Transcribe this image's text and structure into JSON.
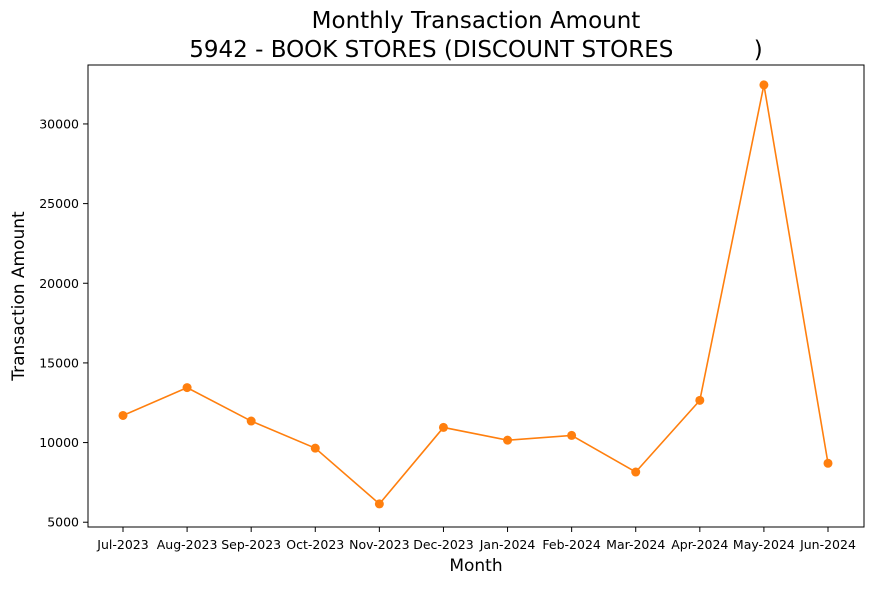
{
  "chart_data": {
    "type": "line",
    "title": "Monthly Transaction Amount",
    "subtitle": "5942 - BOOK STORES (DISCOUNT STORES           )",
    "xlabel": "Month",
    "ylabel": "Transaction Amount",
    "categories": [
      "Jul-2023",
      "Aug-2023",
      "Sep-2023",
      "Oct-2023",
      "Nov-2023",
      "Dec-2023",
      "Jan-2024",
      "Feb-2024",
      "Mar-2024",
      "Apr-2024",
      "May-2024",
      "Jun-2024"
    ],
    "series": [
      {
        "values": [
          11700,
          13450,
          11350,
          9650,
          6150,
          10950,
          10150,
          10450,
          8150,
          12650,
          32450,
          8700
        ],
        "color": "#ff7f0e",
        "marker": "circle"
      }
    ],
    "ylim": [
      4700,
      33700
    ],
    "yticks": [
      5000,
      10000,
      15000,
      20000,
      25000,
      30000
    ],
    "grid": false,
    "legend": "none"
  }
}
